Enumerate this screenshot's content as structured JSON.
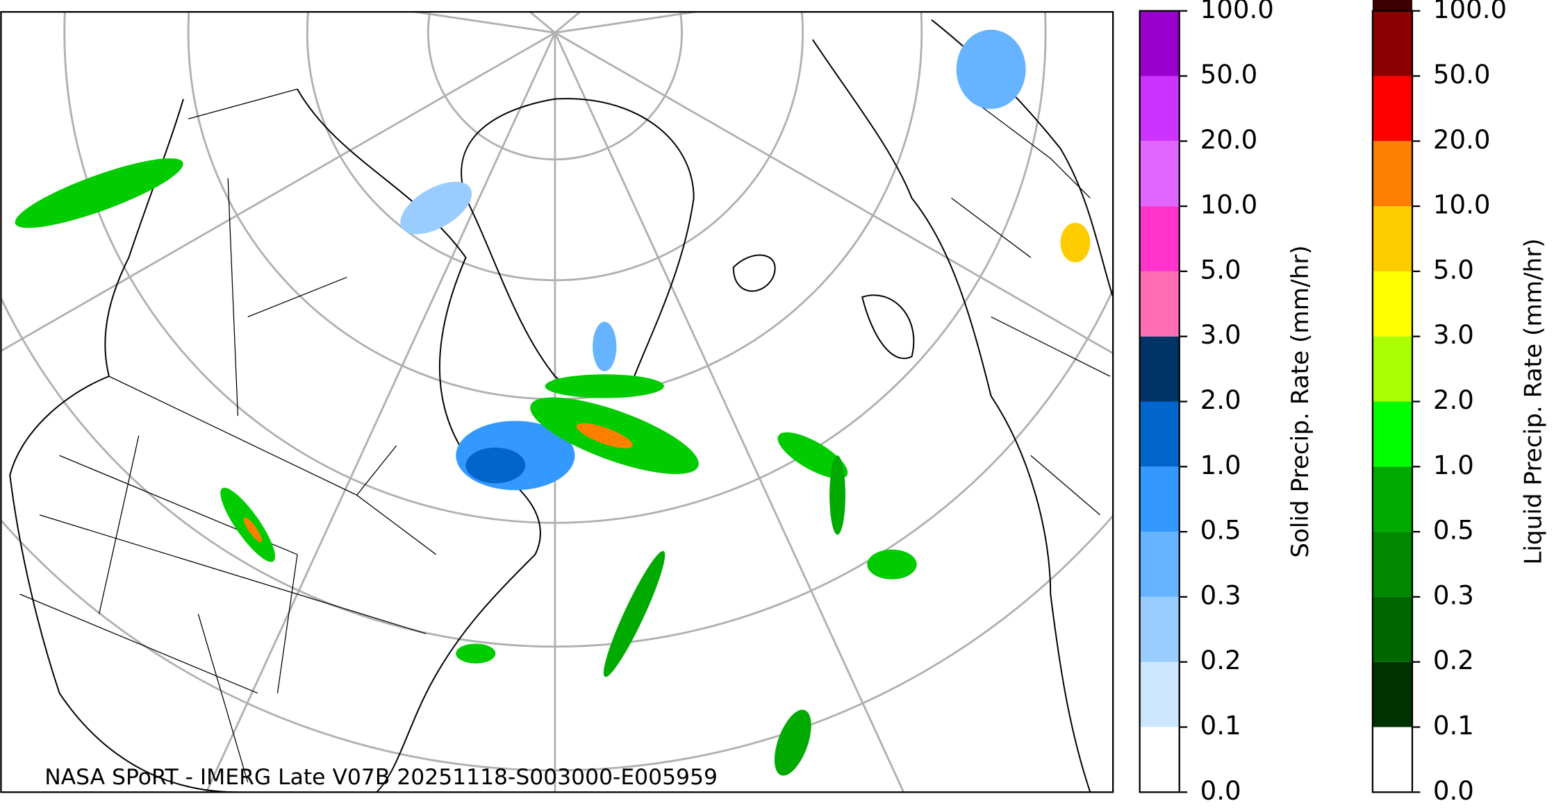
{
  "map": {
    "caption": "NASA SPoRT - IMERG Late V07B 20251118-S003000-E005959"
  },
  "colorbars": [
    {
      "label": "Solid Precip. Rate (mm/hr)",
      "ticks": [
        {
          "value": 0,
          "label": "0.0"
        },
        0.1,
        0.2,
        0.3,
        0.5,
        {
          "value": 1,
          "label": "1.0"
        },
        {
          "value": 2,
          "label": "2.0"
        },
        {
          "value": 3,
          "label": "3.0"
        },
        {
          "value": 5,
          "label": "5.0"
        },
        {
          "value": 10,
          "label": "10.0"
        },
        {
          "value": 20,
          "label": "20.0"
        },
        {
          "value": 50,
          "label": "50.0"
        },
        {
          "value": 100,
          "label": "100.0"
        }
      ],
      "colors": [
        "#ffffff",
        "#cce6ff",
        "#99ccff",
        "#66b3ff",
        "#3399ff",
        "#0066cc",
        "#003366",
        "#ff6eb4",
        "#ff33cc",
        "#e066ff",
        "#cc33ff",
        "#9900cc"
      ]
    },
    {
      "label": "Liquid Precip. Rate (mm/hr)",
      "ticks": [
        {
          "value": 0,
          "label": "0.0"
        },
        0.1,
        0.2,
        0.3,
        0.5,
        {
          "value": 1,
          "label": "1.0"
        },
        {
          "value": 2,
          "label": "2.0"
        },
        {
          "value": 3,
          "label": "3.0"
        },
        {
          "value": 5,
          "label": "5.0"
        },
        {
          "value": 10,
          "label": "10.0"
        },
        {
          "value": 20,
          "label": "20.0"
        },
        {
          "value": 50,
          "label": "50.0"
        },
        {
          "value": 100,
          "label": "100.0"
        }
      ],
      "colors": [
        "#ffffff",
        "#003300",
        "#006600",
        "#008800",
        "#00aa00",
        "#00ff00",
        "#aaff00",
        "#ffff00",
        "#ffcc00",
        "#ff8000",
        "#ff0000",
        "#8b0000",
        "#3d0000"
      ]
    }
  ]
}
